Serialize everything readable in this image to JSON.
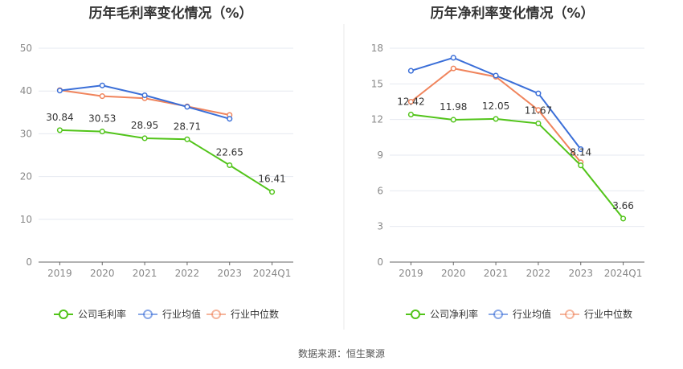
{
  "source_label": "数据来源：恒生聚源",
  "colors": {
    "company": "#52c41a",
    "avg": "#3b6fd8",
    "median": "#f0845c"
  },
  "chart_data": [
    {
      "type": "line",
      "title": "历年毛利率变化情况（%）",
      "categories": [
        "2019",
        "2020",
        "2021",
        "2022",
        "2023",
        "2024Q1"
      ],
      "ylim": [
        0,
        50
      ],
      "yticks": [
        0,
        10,
        20,
        30,
        40,
        50
      ],
      "series": [
        {
          "name": "公司毛利率",
          "key": "company",
          "labels": true,
          "values": [
            30.84,
            30.53,
            28.95,
            28.71,
            22.65,
            16.41
          ]
        },
        {
          "name": "行业均值",
          "key": "avg",
          "labels": false,
          "values": [
            40.1,
            41.3,
            39.0,
            36.3,
            33.5,
            null
          ]
        },
        {
          "name": "行业中位数",
          "key": "median",
          "labels": false,
          "values": [
            40.2,
            38.8,
            38.3,
            36.4,
            34.4,
            null
          ]
        }
      ]
    },
    {
      "type": "line",
      "title": "历年净利率变化情况（%）",
      "categories": [
        "2019",
        "2020",
        "2021",
        "2022",
        "2023",
        "2024Q1"
      ],
      "ylim": [
        0,
        18
      ],
      "yticks": [
        0,
        3,
        6,
        9,
        12,
        15,
        18
      ],
      "series": [
        {
          "name": "公司净利率",
          "key": "company",
          "labels": true,
          "values": [
            12.42,
            11.98,
            12.05,
            11.67,
            8.14,
            3.66
          ]
        },
        {
          "name": "行业均值",
          "key": "avg",
          "labels": false,
          "values": [
            16.1,
            17.2,
            15.7,
            14.2,
            9.5,
            null
          ]
        },
        {
          "name": "行业中位数",
          "key": "median",
          "labels": false,
          "values": [
            13.5,
            16.3,
            15.6,
            12.8,
            8.4,
            null
          ]
        }
      ]
    }
  ]
}
